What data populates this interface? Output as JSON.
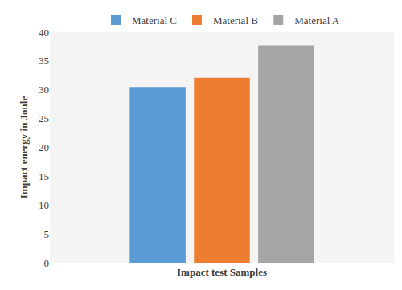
{
  "chart_data": {
    "type": "bar",
    "x_label": "Impact test Samples",
    "y_label": "Impact energy in Joule",
    "categories": [
      null
    ],
    "series": [
      {
        "name": "Material C",
        "color": "#5b9bd5",
        "values": [
          30.5
        ]
      },
      {
        "name": "Material B",
        "color": "#ed7d31",
        "values": [
          32.1
        ]
      },
      {
        "name": "Material A",
        "color": "#a5a5a5",
        "values": [
          37.7
        ]
      }
    ],
    "ylim": [
      0,
      40
    ],
    "yticks": [
      0,
      5,
      10,
      15,
      20,
      25,
      30,
      35,
      40
    ],
    "grid": false,
    "legend": "top",
    "tick_labels": "y"
  }
}
